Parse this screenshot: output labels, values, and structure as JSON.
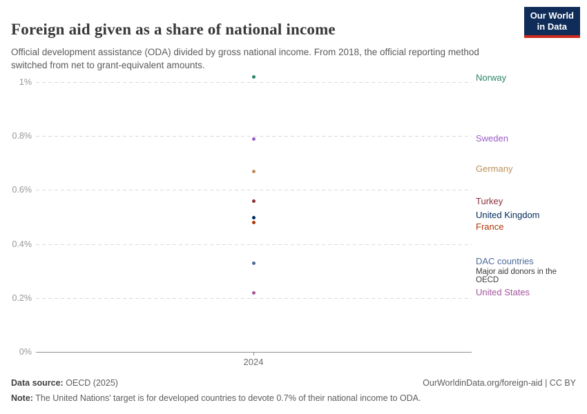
{
  "header": {
    "title": "Foreign aid given as a share of national income",
    "subtitle": "Official development assistance (ODA) divided by gross national income. From 2018, the official reporting method switched from net to grant-equivalent amounts.",
    "logo": {
      "line1": "Our World",
      "line2": "in Data",
      "bg_color": "#102D59",
      "stripe_color": "#CC2A1C"
    }
  },
  "chart_data": {
    "type": "scatter",
    "title": "Foreign aid given as a share of national income",
    "x": [
      2024
    ],
    "x_tick_label": "2024",
    "xlabel": "",
    "ylabel": "",
    "ylim": [
      0,
      1.05
    ],
    "grid": "horizontal dashed",
    "legend_position": "right entity labels",
    "yticks": [
      {
        "value": 0,
        "label": "0%"
      },
      {
        "value": 0.2,
        "label": "0.2%"
      },
      {
        "value": 0.4,
        "label": "0.4%"
      },
      {
        "value": 0.6,
        "label": "0.6%"
      },
      {
        "value": 0.8,
        "label": "0.8%"
      },
      {
        "value": 1,
        "label": "1%"
      }
    ],
    "series": [
      {
        "name": "Norway",
        "value": 1.02,
        "color": "#2C8465",
        "label_dy": 2
      },
      {
        "name": "Sweden",
        "value": 0.79,
        "color": "#9A5DC4",
        "label_dy": 0
      },
      {
        "name": "Germany",
        "value": 0.67,
        "color": "#BC8E5A",
        "label_dy": -3
      },
      {
        "name": "Turkey",
        "value": 0.56,
        "color": "#883039",
        "label_dy": 1
      },
      {
        "name": "United Kingdom",
        "value": 0.5,
        "color": "#00295B",
        "label_dy": -3
      },
      {
        "name": "France",
        "value": 0.48,
        "color": "#B13507",
        "label_dy": 7
      },
      {
        "name": "DAC countries",
        "value": 0.33,
        "color": "#4C6A9C",
        "label_dy": -2,
        "annotation": "Major aid donors in the OECD"
      },
      {
        "name": "United States",
        "value": 0.22,
        "color": "#A2559C",
        "label_dy": 0
      }
    ]
  },
  "footer": {
    "source_label": "Data source:",
    "source_value": " OECD (2025)",
    "credit": "OurWorldinData.org/foreign-aid | CC BY",
    "note_label": "Note:",
    "note_value": " The United Nations' target is for developed countries to devote 0.7% of their national income to ODA."
  }
}
